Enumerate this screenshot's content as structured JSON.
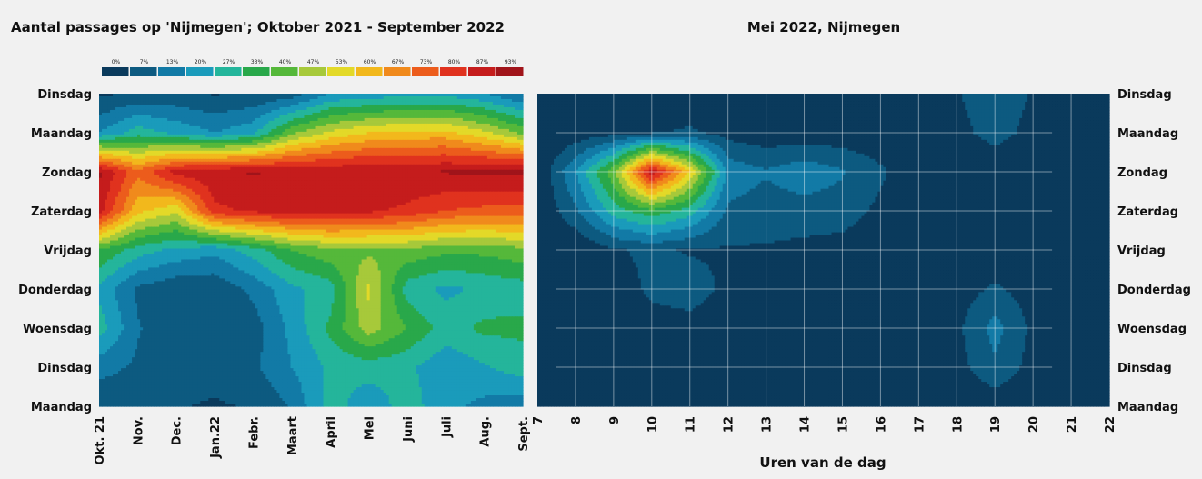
{
  "chart_data": [
    {
      "type": "heatmap",
      "title": "Aantal passages op 'Nijmegen'; Oktober 2021 - September 2022",
      "xlabel": "",
      "ylabel": "",
      "x_categories": [
        "Okt. 21",
        "Nov.",
        "Dec.",
        "Jan.22",
        "Febr.",
        "Maart",
        "April",
        "Mei",
        "Juni",
        "Juli",
        "Aug.",
        "Sept."
      ],
      "y_categories": [
        "Dinsdag",
        "Maandag",
        "Zondag",
        "Zaterdag",
        "Vrijdag",
        "Donderdag",
        "Woensdag",
        "Dinsdag",
        "Maandag"
      ],
      "colorbar": {
        "ticks": [
          "0%",
          "7%",
          "13%",
          "20%",
          "27%",
          "33%",
          "40%",
          "47%",
          "53%",
          "60%",
          "67%",
          "73%",
          "80%",
          "87%",
          "93%"
        ],
        "colors": [
          "#0a3a5c",
          "#0d5a80",
          "#127aa6",
          "#1a9bbb",
          "#24b59b",
          "#29a84a",
          "#55b83a",
          "#a7c93a",
          "#e3d928",
          "#f2b81c",
          "#f08a1c",
          "#ec5c1c",
          "#e0321e",
          "#c51c1c",
          "#a0141a"
        ]
      },
      "values": [
        [
          5,
          8,
          8,
          6,
          7,
          9,
          20,
          22,
          24,
          24,
          20,
          12
        ],
        [
          20,
          30,
          25,
          20,
          25,
          45,
          55,
          60,
          62,
          62,
          55,
          45
        ],
        [
          95,
          75,
          90,
          92,
          94,
          92,
          92,
          93,
          93,
          94,
          95,
          95
        ],
        [
          90,
          62,
          55,
          85,
          88,
          90,
          90,
          88,
          85,
          80,
          78,
          78
        ],
        [
          40,
          30,
          25,
          22,
          30,
          40,
          45,
          45,
          45,
          42,
          42,
          45
        ],
        [
          25,
          12,
          8,
          8,
          15,
          25,
          30,
          55,
          30,
          25,
          28,
          30
        ],
        [
          30,
          14,
          8,
          8,
          10,
          22,
          35,
          50,
          40,
          30,
          35,
          35
        ],
        [
          16,
          12,
          9,
          9,
          12,
          20,
          28,
          30,
          28,
          22,
          26,
          30
        ],
        [
          8,
          8,
          7,
          6,
          7,
          14,
          30,
          22,
          30,
          22,
          18,
          16
        ]
      ]
    },
    {
      "type": "heatmap",
      "title": "Mei 2022, Nijmegen",
      "xlabel": "Uren van de dag",
      "ylabel": "",
      "x_categories": [
        "7",
        "8",
        "9",
        "10",
        "11",
        "12",
        "13",
        "14",
        "15",
        "16",
        "17",
        "18",
        "19",
        "20",
        "21",
        "22"
      ],
      "y_categories": [
        "Dinsdag",
        "Maandag",
        "Zondag",
        "Zaterdag",
        "Vrijdag",
        "Donderdag",
        "Woensdag",
        "Dinsdag",
        "Maandag"
      ],
      "values": [
        [
          0,
          0,
          0,
          0,
          0,
          0,
          0,
          0,
          0,
          0,
          0,
          6,
          12,
          6,
          0,
          0
        ],
        [
          0,
          2,
          4,
          6,
          8,
          4,
          2,
          2,
          2,
          1,
          0,
          4,
          10,
          4,
          0,
          0
        ],
        [
          0,
          20,
          45,
          92,
          60,
          18,
          14,
          18,
          14,
          8,
          1,
          0,
          0,
          0,
          0,
          0
        ],
        [
          0,
          12,
          30,
          38,
          30,
          12,
          10,
          10,
          10,
          5,
          0,
          0,
          0,
          0,
          0,
          0
        ],
        [
          0,
          0,
          6,
          8,
          6,
          6,
          6,
          5,
          4,
          1,
          0,
          0,
          0,
          0,
          0,
          0
        ],
        [
          0,
          0,
          3,
          8,
          10,
          5,
          4,
          3,
          2,
          0,
          0,
          3,
          8,
          3,
          0,
          0
        ],
        [
          0,
          0,
          2,
          4,
          4,
          2,
          1,
          1,
          1,
          0,
          0,
          5,
          16,
          5,
          0,
          0
        ],
        [
          0,
          0,
          0,
          0,
          0,
          0,
          0,
          0,
          0,
          0,
          0,
          4,
          12,
          4,
          0,
          0
        ],
        [
          0,
          0,
          0,
          0,
          3,
          0,
          0,
          0,
          0,
          0,
          0,
          1,
          2,
          1,
          0,
          0
        ]
      ]
    }
  ]
}
